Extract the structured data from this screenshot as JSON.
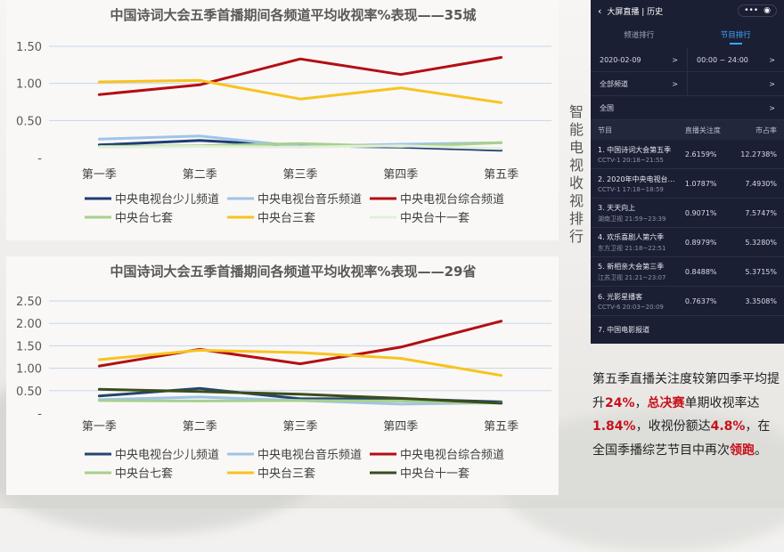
{
  "chart_data": [
    {
      "type": "line",
      "title": "中国诗词大会五季首播期间各频道平均收视率%表现——35城",
      "categories": [
        "第一季",
        "第二季",
        "第三季",
        "第四季",
        "第五季"
      ],
      "ylim": [
        0,
        1.5
      ],
      "yticks": [
        "-",
        "0.50",
        "1.00",
        "1.50"
      ],
      "grid": true,
      "legend_position": "bottom",
      "series": [
        {
          "name": "中央电视台少儿频道",
          "color": "#1f3c73",
          "values": [
            0.17,
            0.23,
            0.16,
            0.14,
            0.1
          ]
        },
        {
          "name": "中央电视台音乐频道",
          "color": "#9fc4e8",
          "values": [
            0.25,
            0.29,
            0.15,
            0.18,
            0.2
          ]
        },
        {
          "name": "中央电视台综合频道",
          "color": "#b40e13",
          "values": [
            0.85,
            0.98,
            1.33,
            1.12,
            1.35
          ]
        },
        {
          "name": "中央台七套",
          "color": "#a8d08d",
          "values": [
            0.15,
            0.16,
            0.19,
            0.15,
            0.2
          ]
        },
        {
          "name": "中央台三套",
          "color": "#f8c31e",
          "values": [
            1.02,
            1.04,
            0.79,
            0.94,
            0.74
          ]
        },
        {
          "name": "中央台十一套",
          "color": "#e2efda",
          "values": [
            0.14,
            0.15,
            0.14,
            0.16,
            0.12
          ]
        }
      ]
    },
    {
      "type": "line",
      "title": "中国诗词大会五季首播期间各频道平均收视率%表现——29省",
      "categories": [
        "第一季",
        "第二季",
        "第三季",
        "第四季",
        "第五季"
      ],
      "ylim": [
        0,
        2.5
      ],
      "yticks": [
        "-",
        "0.50",
        "1.00",
        "1.50",
        "2.00",
        "2.50"
      ],
      "grid": true,
      "legend_position": "bottom",
      "series": [
        {
          "name": "中央电视台少儿频道",
          "color": "#23466b",
          "values": [
            0.38,
            0.55,
            0.32,
            0.32,
            0.25
          ]
        },
        {
          "name": "中央电视台音乐频道",
          "color": "#9fc4e8",
          "values": [
            0.3,
            0.36,
            0.28,
            0.2,
            0.23
          ]
        },
        {
          "name": "中央电视台综合频道",
          "color": "#b40e13",
          "values": [
            1.05,
            1.42,
            1.1,
            1.47,
            2.05
          ]
        },
        {
          "name": "中央台七套",
          "color": "#a8d08d",
          "values": [
            0.28,
            0.27,
            0.28,
            0.27,
            0.22
          ]
        },
        {
          "name": "中央台三套",
          "color": "#f8c31e",
          "values": [
            1.19,
            1.4,
            1.35,
            1.22,
            0.84
          ]
        },
        {
          "name": "中央台十一套",
          "color": "#3c4d1c",
          "values": [
            0.53,
            0.48,
            0.42,
            0.33,
            0.22
          ]
        }
      ]
    }
  ],
  "side_title": "智能电视收视排行",
  "app": {
    "title": "大屏直播 | 历史",
    "back_icon": "chevron-left-icon",
    "menu_icon": "more-icon",
    "record_icon": "target-icon",
    "tabs": [
      "频道排行",
      "节目排行"
    ],
    "active_tab": "节目排行",
    "filters": {
      "date": "2020-02-09",
      "time": "00:00 ~ 24:00",
      "channels": "全部频道",
      "region": "全国"
    },
    "headers": [
      "节目",
      "直播关注度",
      "市占率"
    ],
    "rows": [
      {
        "name": "1. 中国诗词大会第五季",
        "sub": "CCTV-1 20:18~21:55",
        "attention": "2.6159%",
        "share": "12.2738%"
      },
      {
        "name": "2. 2020年中央电视台…",
        "sub": "CCTV-1 17:18~18:59",
        "attention": "1.0787%",
        "share": "7.4930%"
      },
      {
        "name": "3. 天天向上",
        "sub": "湖南卫视 21:59~23:39",
        "attention": "0.9071%",
        "share": "7.5747%"
      },
      {
        "name": "4. 欢乐喜剧人第六季",
        "sub": "东方卫视 21:18~22:51",
        "attention": "0.8979%",
        "share": "5.3280%"
      },
      {
        "name": "5. 新相亲大会第三季",
        "sub": "江苏卫视 21:21~23:07",
        "attention": "0.8488%",
        "share": "5.3715%"
      },
      {
        "name": "6. 光影星播客",
        "sub": "CCTV-6 20:03~20:09",
        "attention": "0.7637%",
        "share": "3.3508%"
      },
      {
        "name": "7. 中国电影报道",
        "sub": "",
        "attention": "",
        "share": ""
      }
    ]
  },
  "note": {
    "t1": "第五季直播关注度较第四季平均提升",
    "v1": "24%",
    "t2": "，",
    "v2": "总决赛",
    "t3": "单期收视率达",
    "v3": "1.84%",
    "t4": "，收视份额达",
    "v4": "4.8%",
    "t5": "，在全国季播综艺节目中再次",
    "v5": "领跑",
    "t6": "。"
  }
}
